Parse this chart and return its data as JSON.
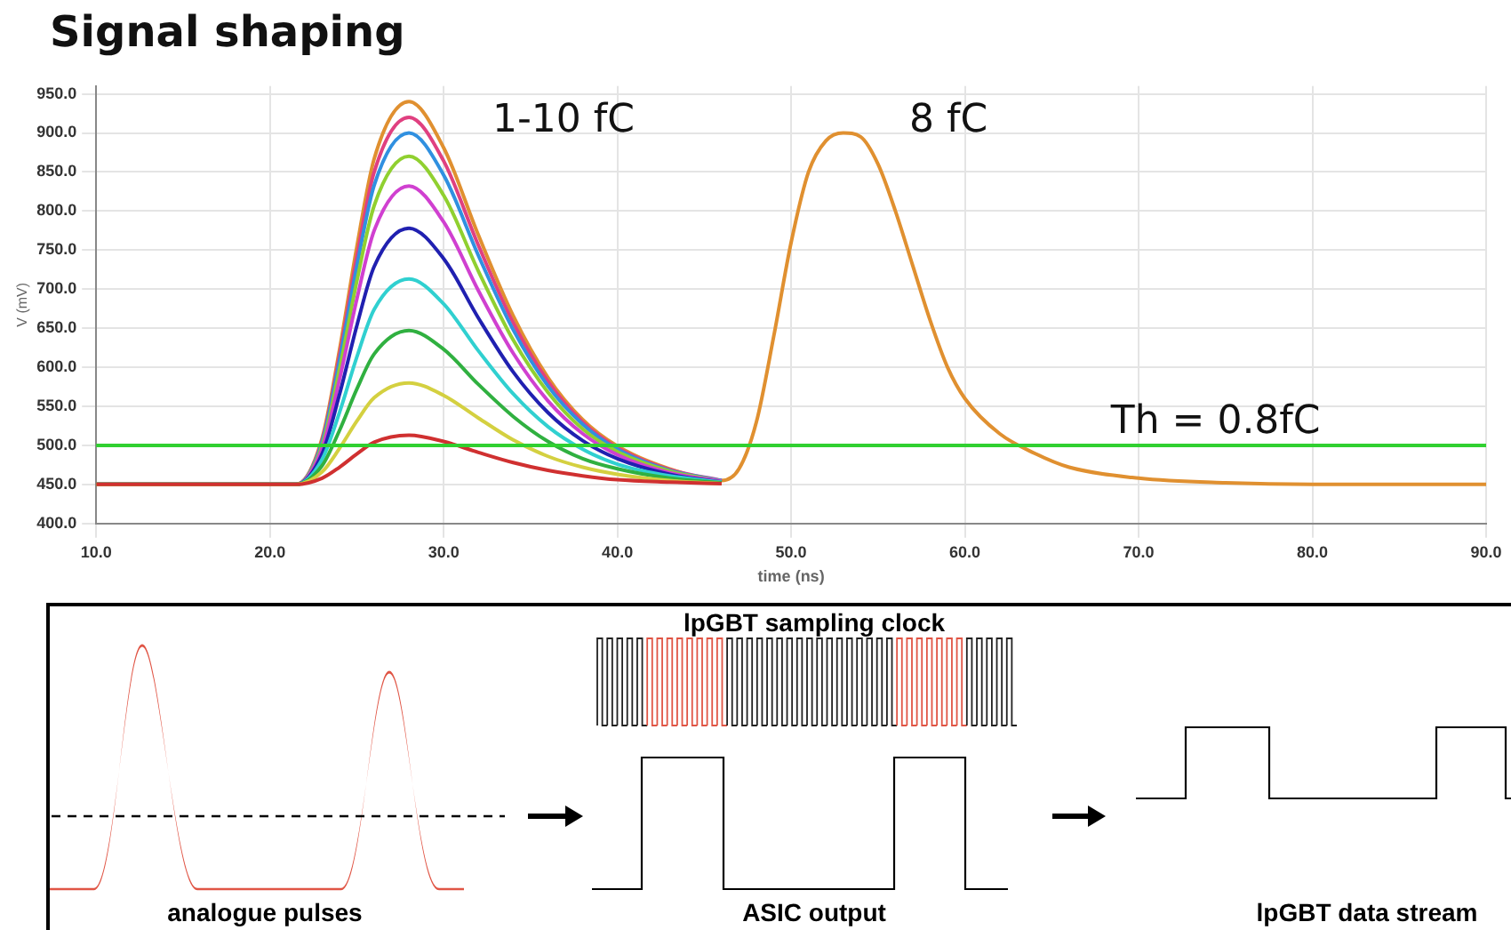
{
  "chart_data": {
    "type": "line",
    "title": "Signal shaping",
    "xlabel": "time (ns)",
    "ylabel": "V (mV)",
    "xlim": [
      10,
      90
    ],
    "xticks": [
      {
        "value": 10,
        "label": "10.0"
      },
      {
        "value": 20,
        "label": "20.0"
      },
      {
        "value": 30,
        "label": "30.0"
      },
      {
        "value": 40,
        "label": "40.0"
      },
      {
        "value": 50,
        "label": "50.0"
      },
      {
        "value": 60,
        "label": "60.0"
      },
      {
        "value": 70,
        "label": "70.0"
      },
      {
        "value": 80,
        "label": "80.0"
      },
      {
        "value": 90,
        "label": "90.0"
      }
    ],
    "ylim": [
      400,
      960
    ],
    "yticks": [
      {
        "value": 400,
        "label": "400.0"
      },
      {
        "value": 450,
        "label": "450.0"
      },
      {
        "value": 500,
        "label": "500.0"
      },
      {
        "value": 550,
        "label": "550.0"
      },
      {
        "value": 600,
        "label": "600.0"
      },
      {
        "value": 650,
        "label": "650.0"
      },
      {
        "value": 700,
        "label": "700.0"
      },
      {
        "value": 750,
        "label": "750.0"
      },
      {
        "value": 800,
        "label": "800.0"
      },
      {
        "value": 850,
        "label": "850.0"
      },
      {
        "value": 900,
        "label": "900.0"
      },
      {
        "value": 950,
        "label": "950.0"
      }
    ],
    "grid": true,
    "legend": false,
    "marker": "none",
    "line_style": "solid",
    "x": [
      10,
      21.5,
      23,
      24,
      25,
      26,
      28,
      30,
      32,
      34,
      36,
      38,
      40,
      43,
      46
    ],
    "series": [
      {
        "color": "#d03030",
        "values": [
          450,
          450,
          458,
          472,
          489,
          504,
          513,
          505,
          491,
          478,
          468,
          461,
          456,
          453,
          451
        ]
      },
      {
        "color": "#d4d040",
        "values": [
          450,
          450,
          466,
          496,
          531,
          561,
          580,
          564,
          535,
          507,
          486,
          472,
          463,
          455,
          451
        ]
      },
      {
        "color": "#30b040",
        "values": [
          450,
          450,
          474,
          519,
          572,
          617,
          647,
          623,
          578,
          537,
          505,
          483,
          470,
          458,
          452
        ]
      },
      {
        "color": "#30d0d0",
        "values": [
          450,
          450,
          482,
          542,
          613,
          674,
          713,
          681,
          621,
          566,
          524,
          495,
          476,
          461,
          453
        ]
      },
      {
        "color": "#2020b0",
        "values": [
          450,
          450,
          489,
          565,
          653,
          729,
          778,
          739,
          663,
          594,
          542,
          506,
          483,
          463,
          453
        ]
      },
      {
        "color": "#d040d0",
        "values": [
          450,
          450,
          496,
          584,
          687,
          775,
          832,
          786,
          698,
          618,
          557,
          515,
          488,
          465,
          454
        ]
      },
      {
        "color": "#90d030",
        "values": [
          450,
          450,
          500,
          597,
          710,
          807,
          870,
          820,
          723,
          635,
          568,
          521,
          492,
          467,
          454
        ]
      },
      {
        "color": "#3090e0",
        "values": [
          450,
          450,
          504,
          608,
          729,
          833,
          900,
          846,
          743,
          648,
          576,
          527,
          495,
          468,
          455
        ]
      },
      {
        "color": "#e04080",
        "values": [
          450,
          450,
          506,
          615,
          741,
          850,
          920,
          864,
          756,
          657,
          582,
          530,
          497,
          469,
          455
        ]
      },
      {
        "color": "#e09030",
        "x": [
          10,
          21.5,
          23,
          24,
          25,
          26,
          28,
          30,
          32,
          34,
          36,
          38,
          40,
          43,
          46,
          47,
          48,
          49,
          50,
          51,
          52,
          53,
          54,
          55,
          56,
          57,
          58,
          59,
          60,
          62,
          64,
          66,
          70,
          75,
          80,
          90
        ],
        "values": [
          450,
          450,
          509,
          622,
          754,
          867,
          940,
          881,
          769,
          666,
          587,
          533,
          499,
          470,
          455,
          470,
          530,
          640,
          760,
          850,
          890,
          900,
          895,
          860,
          800,
          730,
          660,
          600,
          560,
          515,
          490,
          472,
          458,
          452,
          450,
          450
        ]
      }
    ],
    "ref_lines": [
      {
        "axis": "y",
        "value": 500,
        "color": "#30d030"
      }
    ],
    "annotations": [
      "1-10 fC",
      "8 fC",
      "Th = 0.8fC",
      "lpGBT sampling clock",
      "analogue pulses",
      "ASIC output",
      "lpGBT data stream"
    ]
  }
}
